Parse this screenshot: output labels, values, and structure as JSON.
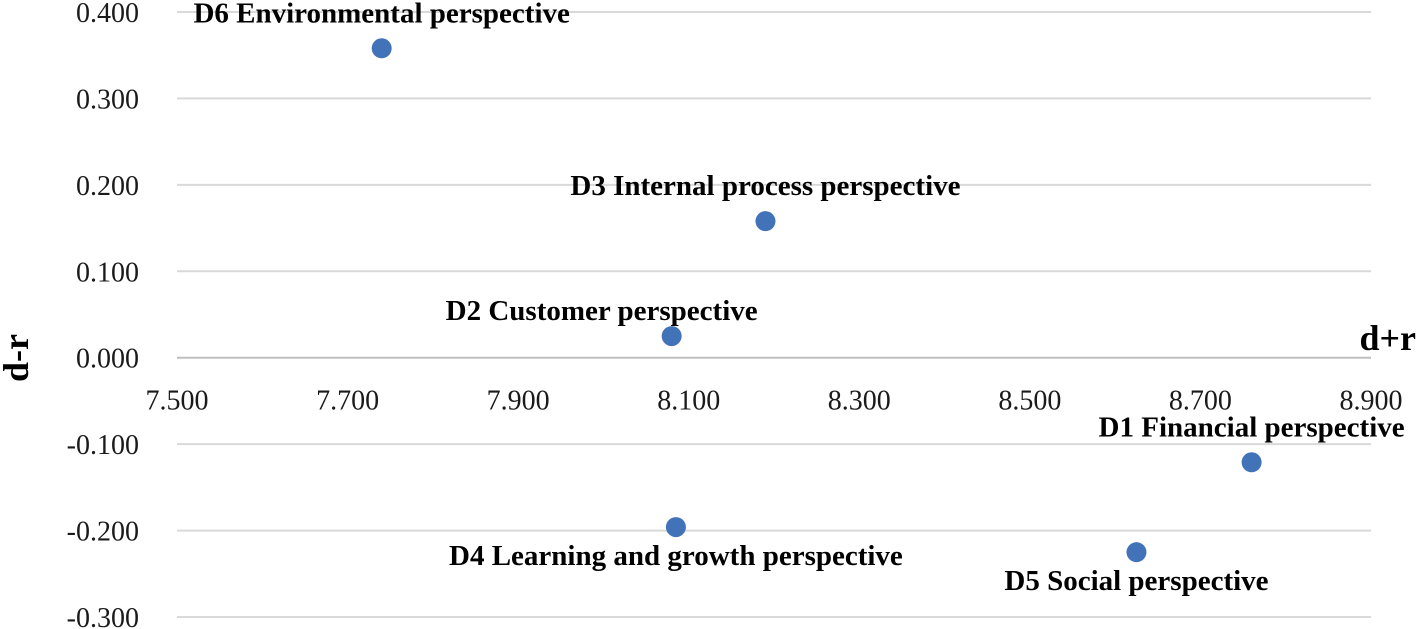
{
  "chart_data": {
    "type": "scatter",
    "title": "",
    "xlabel": "d+r",
    "ylabel": "d-r",
    "xlim": [
      7.5,
      8.9
    ],
    "ylim": [
      -0.3,
      0.4
    ],
    "grid": true,
    "x_ticks": [
      "7.500",
      "7.700",
      "7.900",
      "8.100",
      "8.300",
      "8.500",
      "8.700",
      "8.900"
    ],
    "y_ticks": [
      "0.400",
      "0.300",
      "0.200",
      "0.100",
      "0.000",
      "-0.100",
      "-0.200",
      "-0.300"
    ],
    "marker_color": "#4272b8",
    "points": [
      {
        "label": "D6 Environmental perspective",
        "x": 7.74,
        "y": 0.358,
        "label_pos": "above"
      },
      {
        "label": "D3 Internal process perspective",
        "x": 8.19,
        "y": 0.158,
        "label_pos": "above"
      },
      {
        "label": "D2 Customer perspective",
        "x": 8.08,
        "y": 0.025,
        "label_pos": "above-left"
      },
      {
        "label": "D1 Financial perspective",
        "x": 8.76,
        "y": -0.121,
        "label_pos": "above"
      },
      {
        "label": "D4 Learning and growth perspective",
        "x": 8.085,
        "y": -0.196,
        "label_pos": "below"
      },
      {
        "label": "D5 Social perspective",
        "x": 8.625,
        "y": -0.225,
        "label_pos": "below"
      }
    ]
  }
}
